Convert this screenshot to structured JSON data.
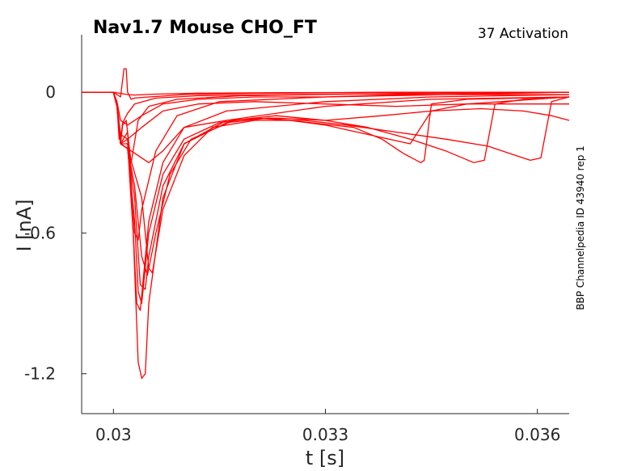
{
  "chart_data": {
    "type": "line",
    "title": "Nav1.7  Mouse  CHO_FT",
    "annotation": "37  Activation",
    "side_note": "BBP Channelpedia ID 43940 rep 1",
    "xlabel": "t [s]",
    "ylabel": "I [nA]",
    "xlim": [
      0.02955,
      0.03645
    ],
    "ylim": [
      -1.37,
      0.245
    ],
    "xticks": [
      0.03,
      0.033,
      0.036
    ],
    "xtick_labels": [
      "0.03",
      "0.033",
      "0.036"
    ],
    "yticks": [
      0,
      -0.6,
      -1.2
    ],
    "ytick_labels": [
      "0",
      "-0.6",
      "-1.2"
    ],
    "grid": false,
    "box": false,
    "line_color": "#ff0000",
    "series": [
      {
        "values": [
          [
            0.02955,
            0.0
          ],
          [
            0.03,
            0.0
          ],
          [
            0.0301,
            -0.005
          ],
          [
            0.0302,
            -0.01
          ],
          [
            0.0303,
            -0.012
          ],
          [
            0.0306,
            -0.008
          ],
          [
            0.0312,
            -0.004
          ],
          [
            0.0325,
            -0.002
          ],
          [
            0.0345,
            0.0
          ],
          [
            0.03645,
            0.0
          ]
        ]
      },
      {
        "values": [
          [
            0.02955,
            0.0
          ],
          [
            0.03,
            0.0
          ],
          [
            0.0301,
            -0.02
          ],
          [
            0.03015,
            0.1
          ],
          [
            0.03018,
            0.1
          ],
          [
            0.0302,
            0.0
          ],
          [
            0.03025,
            -0.03
          ],
          [
            0.0303,
            -0.025
          ],
          [
            0.0305,
            -0.02
          ],
          [
            0.031,
            -0.01
          ],
          [
            0.032,
            -0.005
          ],
          [
            0.034,
            0.0
          ],
          [
            0.03645,
            0.0
          ]
        ]
      },
      {
        "values": [
          [
            0.02955,
            0.0
          ],
          [
            0.03,
            0.0
          ],
          [
            0.03005,
            -0.05
          ],
          [
            0.03008,
            -0.2
          ],
          [
            0.0301,
            -0.2
          ],
          [
            0.03013,
            -0.13
          ],
          [
            0.0302,
            -0.09
          ],
          [
            0.0303,
            -0.05
          ],
          [
            0.0306,
            -0.025
          ],
          [
            0.0312,
            -0.015
          ],
          [
            0.0325,
            -0.01
          ],
          [
            0.0345,
            -0.005
          ],
          [
            0.03645,
            0.0
          ]
        ]
      },
      {
        "values": [
          [
            0.02955,
            0.0
          ],
          [
            0.03,
            0.0
          ],
          [
            0.03005,
            -0.06
          ],
          [
            0.0301,
            -0.22
          ],
          [
            0.03013,
            -0.14
          ],
          [
            0.03018,
            -0.12
          ],
          [
            0.03025,
            -0.3
          ],
          [
            0.03035,
            -0.12
          ],
          [
            0.0305,
            -0.06
          ],
          [
            0.0309,
            -0.03
          ],
          [
            0.0318,
            -0.015
          ],
          [
            0.034,
            -0.005
          ],
          [
            0.03645,
            0.0
          ]
        ]
      },
      {
        "values": [
          [
            0.02955,
            0.0
          ],
          [
            0.03,
            0.0
          ],
          [
            0.03005,
            -0.06
          ],
          [
            0.0301,
            -0.22
          ],
          [
            0.0302,
            -0.17
          ],
          [
            0.0303,
            -0.6
          ],
          [
            0.03035,
            -0.63
          ],
          [
            0.0304,
            -0.5
          ],
          [
            0.0306,
            -0.25
          ],
          [
            0.0309,
            -0.1
          ],
          [
            0.0315,
            -0.04
          ],
          [
            0.033,
            -0.02
          ],
          [
            0.03645,
            0.0
          ]
        ]
      },
      {
        "values": [
          [
            0.02955,
            0.0
          ],
          [
            0.03,
            0.0
          ],
          [
            0.03005,
            -0.06
          ],
          [
            0.0301,
            -0.22
          ],
          [
            0.0302,
            -0.2
          ],
          [
            0.03028,
            -0.6
          ],
          [
            0.03033,
            -0.9
          ],
          [
            0.03038,
            -0.93
          ],
          [
            0.0305,
            -0.55
          ],
          [
            0.0307,
            -0.3
          ],
          [
            0.031,
            -0.15
          ],
          [
            0.0316,
            -0.08
          ],
          [
            0.033,
            -0.04
          ],
          [
            0.0345,
            -0.02
          ],
          [
            0.03645,
            -0.01
          ]
        ]
      },
      {
        "values": [
          [
            0.02955,
            0.0
          ],
          [
            0.03,
            0.0
          ],
          [
            0.03005,
            -0.06
          ],
          [
            0.0301,
            -0.22
          ],
          [
            0.0302,
            -0.22
          ],
          [
            0.03028,
            -0.6
          ],
          [
            0.03035,
            -1.15
          ],
          [
            0.0304,
            -1.22
          ],
          [
            0.03045,
            -1.2
          ],
          [
            0.0305,
            -0.9
          ],
          [
            0.0307,
            -0.45
          ],
          [
            0.031,
            -0.22
          ],
          [
            0.0316,
            -0.12
          ],
          [
            0.033,
            -0.06
          ],
          [
            0.0345,
            -0.03
          ],
          [
            0.03645,
            -0.02
          ]
        ]
      },
      {
        "values": [
          [
            0.02955,
            0.0
          ],
          [
            0.03,
            0.0
          ],
          [
            0.03005,
            -0.06
          ],
          [
            0.0301,
            -0.22
          ],
          [
            0.0302,
            -0.24
          ],
          [
            0.0303,
            -0.55
          ],
          [
            0.03035,
            -0.85
          ],
          [
            0.0304,
            -0.9
          ],
          [
            0.0305,
            -0.6
          ],
          [
            0.0307,
            -0.35
          ],
          [
            0.031,
            -0.2
          ],
          [
            0.0315,
            -0.13
          ],
          [
            0.032,
            -0.11
          ],
          [
            0.0325,
            -0.12
          ],
          [
            0.033,
            -0.14
          ],
          [
            0.0333,
            -0.16
          ],
          [
            0.0336,
            -0.18
          ],
          [
            0.0339,
            -0.2
          ],
          [
            0.0342,
            -0.22
          ],
          [
            0.0345,
            -0.08
          ],
          [
            0.035,
            -0.05
          ],
          [
            0.03645,
            -0.02
          ]
        ]
      },
      {
        "values": [
          [
            0.02955,
            0.0
          ],
          [
            0.03,
            0.0
          ],
          [
            0.03005,
            -0.06
          ],
          [
            0.0301,
            -0.22
          ],
          [
            0.0302,
            -0.24
          ],
          [
            0.0303,
            -0.45
          ],
          [
            0.03038,
            -0.82
          ],
          [
            0.03045,
            -0.84
          ],
          [
            0.0305,
            -0.7
          ],
          [
            0.0307,
            -0.4
          ],
          [
            0.031,
            -0.22
          ],
          [
            0.0316,
            -0.13
          ],
          [
            0.0322,
            -0.11
          ],
          [
            0.0328,
            -0.13
          ],
          [
            0.0334,
            -0.15
          ],
          [
            0.0338,
            -0.2
          ],
          [
            0.0341,
            -0.26
          ],
          [
            0.03435,
            -0.3
          ],
          [
            0.0344,
            -0.29
          ],
          [
            0.0345,
            -0.05
          ],
          [
            0.035,
            -0.03
          ],
          [
            0.03645,
            -0.02
          ]
        ]
      },
      {
        "values": [
          [
            0.02955,
            0.0
          ],
          [
            0.03,
            0.0
          ],
          [
            0.03005,
            -0.06
          ],
          [
            0.0301,
            -0.22
          ],
          [
            0.0302,
            -0.24
          ],
          [
            0.0303,
            -0.4
          ],
          [
            0.0304,
            -0.7
          ],
          [
            0.03048,
            -0.78
          ],
          [
            0.0306,
            -0.6
          ],
          [
            0.0308,
            -0.35
          ],
          [
            0.0311,
            -0.2
          ],
          [
            0.0317,
            -0.12
          ],
          [
            0.0323,
            -0.1
          ],
          [
            0.033,
            -0.12
          ],
          [
            0.0336,
            -0.15
          ],
          [
            0.0342,
            -0.2
          ],
          [
            0.0347,
            -0.25
          ],
          [
            0.0351,
            -0.3
          ],
          [
            0.03525,
            -0.29
          ],
          [
            0.0354,
            -0.05
          ],
          [
            0.0358,
            -0.03
          ],
          [
            0.03645,
            -0.02
          ]
        ]
      },
      {
        "values": [
          [
            0.02955,
            0.0
          ],
          [
            0.03,
            0.0
          ],
          [
            0.03005,
            -0.06
          ],
          [
            0.0301,
            -0.22
          ],
          [
            0.0302,
            -0.24
          ],
          [
            0.0304,
            -0.45
          ],
          [
            0.0305,
            -0.75
          ],
          [
            0.03055,
            -0.77
          ],
          [
            0.0307,
            -0.5
          ],
          [
            0.031,
            -0.27
          ],
          [
            0.0314,
            -0.15
          ],
          [
            0.032,
            -0.12
          ],
          [
            0.0327,
            -0.12
          ],
          [
            0.0333,
            -0.14
          ],
          [
            0.034,
            -0.17
          ],
          [
            0.0347,
            -0.2
          ],
          [
            0.0353,
            -0.23
          ],
          [
            0.0357,
            -0.27
          ],
          [
            0.0359,
            -0.29
          ],
          [
            0.03605,
            -0.28
          ],
          [
            0.0362,
            -0.04
          ],
          [
            0.03645,
            -0.02
          ]
        ]
      },
      {
        "values": [
          [
            0.02955,
            0.0
          ],
          [
            0.03,
            0.0
          ],
          [
            0.03005,
            -0.06
          ],
          [
            0.0301,
            -0.22
          ],
          [
            0.0302,
            -0.24
          ],
          [
            0.0305,
            -0.3
          ],
          [
            0.0307,
            -0.25
          ],
          [
            0.031,
            -0.15
          ],
          [
            0.0316,
            -0.12
          ],
          [
            0.0323,
            -0.11
          ],
          [
            0.033,
            -0.12
          ],
          [
            0.0338,
            -0.1
          ],
          [
            0.0345,
            -0.08
          ],
          [
            0.0352,
            -0.07
          ],
          [
            0.0358,
            -0.08
          ],
          [
            0.0362,
            -0.1
          ],
          [
            0.03645,
            -0.12
          ]
        ]
      },
      {
        "values": [
          [
            0.02955,
            0.0
          ],
          [
            0.03,
            0.0
          ],
          [
            0.03005,
            -0.05
          ],
          [
            0.0301,
            -0.18
          ],
          [
            0.0302,
            -0.2
          ],
          [
            0.0304,
            -0.15
          ],
          [
            0.0307,
            -0.08
          ],
          [
            0.0312,
            -0.05
          ],
          [
            0.032,
            -0.04
          ],
          [
            0.033,
            -0.05
          ],
          [
            0.034,
            -0.06
          ],
          [
            0.035,
            -0.05
          ],
          [
            0.036,
            -0.05
          ],
          [
            0.03645,
            -0.05
          ]
        ]
      },
      {
        "values": [
          [
            0.02955,
            0.0
          ],
          [
            0.03,
            0.0
          ],
          [
            0.03005,
            -0.04
          ],
          [
            0.0301,
            -0.12
          ],
          [
            0.0302,
            -0.14
          ],
          [
            0.0304,
            -0.1
          ],
          [
            0.0307,
            -0.05
          ],
          [
            0.0312,
            -0.03
          ],
          [
            0.032,
            -0.02
          ],
          [
            0.033,
            -0.02
          ],
          [
            0.034,
            -0.01
          ],
          [
            0.035,
            -0.01
          ],
          [
            0.03645,
            -0.01
          ]
        ]
      }
    ]
  }
}
